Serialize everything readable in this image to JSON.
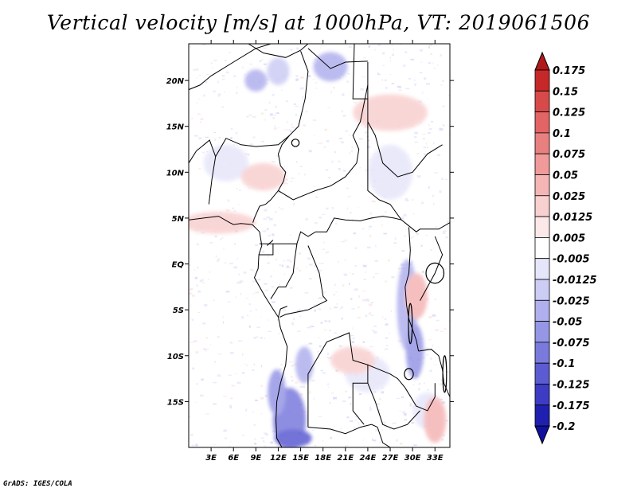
{
  "title": "Vertical velocity [m/s] at 1000hPa, VT: 2019061506",
  "credit": "GrADS: IGES/COLA",
  "chart_data": {
    "type": "heatmap",
    "title": "Vertical velocity [m/s] at 1000hPa, VT: 2019061506",
    "variable": "Vertical velocity",
    "units": "m/s",
    "level": "1000hPa",
    "valid_time": "2019061506",
    "xlim": [
      0,
      35
    ],
    "ylim": [
      -20,
      24
    ],
    "x_ticks": [
      {
        "value": 3,
        "label": "3E"
      },
      {
        "value": 6,
        "label": "6E"
      },
      {
        "value": 9,
        "label": "9E"
      },
      {
        "value": 12,
        "label": "12E"
      },
      {
        "value": 15,
        "label": "15E"
      },
      {
        "value": 18,
        "label": "18E"
      },
      {
        "value": 21,
        "label": "21E"
      },
      {
        "value": 24,
        "label": "24E"
      },
      {
        "value": 27,
        "label": "27E"
      },
      {
        "value": 30,
        "label": "30E"
      },
      {
        "value": 33,
        "label": "33E"
      }
    ],
    "y_ticks": [
      {
        "value": 20,
        "label": "20N"
      },
      {
        "value": 15,
        "label": "15N"
      },
      {
        "value": 10,
        "label": "10N"
      },
      {
        "value": 5,
        "label": "5N"
      },
      {
        "value": 0,
        "label": "EQ"
      },
      {
        "value": -5,
        "label": "5S"
      },
      {
        "value": -10,
        "label": "10S"
      },
      {
        "value": -15,
        "label": "15S"
      }
    ],
    "colorbar": {
      "levels": [
        "0.175",
        "0.15",
        "0.125",
        "0.1",
        "0.075",
        "0.05",
        "0.025",
        "0.0125",
        "0.005",
        "-0.005",
        "-0.0125",
        "-0.025",
        "-0.05",
        "-0.075",
        "-0.1",
        "-0.125",
        "-0.175",
        "-0.2"
      ],
      "colors": [
        "#b01a1a",
        "#c62828",
        "#d84a4a",
        "#e26464",
        "#e98080",
        "#f09a9a",
        "#f5b5b5",
        "#f9d0d0",
        "#fce8e8",
        "#ffffff",
        "#e6e6fa",
        "#ccccf4",
        "#b0b0ee",
        "#9696e6",
        "#7a7add",
        "#5c5cd2",
        "#3c3cc4",
        "#2020b0",
        "#10109e"
      ]
    },
    "features": {
      "negative_regions": [
        {
          "lon": 13.5,
          "lat": -17,
          "rx": 2.2,
          "ry": 3.5,
          "value": -0.1
        },
        {
          "lon": 11.8,
          "lat": -14,
          "rx": 1.2,
          "ry": 2.5,
          "value": -0.075
        },
        {
          "lon": 15.5,
          "lat": -11,
          "rx": 1.2,
          "ry": 2,
          "value": -0.05
        },
        {
          "lon": 29.3,
          "lat": -4.5,
          "rx": 1.4,
          "ry": 5,
          "value": -0.05
        },
        {
          "lon": 30.3,
          "lat": -9.5,
          "rx": 1.2,
          "ry": 3,
          "value": -0.075
        },
        {
          "lon": 19,
          "lat": 21.5,
          "rx": 2.3,
          "ry": 1.6,
          "value": -0.05
        },
        {
          "lon": 9,
          "lat": 20,
          "rx": 1.5,
          "ry": 1.2,
          "value": -0.05
        },
        {
          "lon": 32,
          "lat": -16,
          "rx": 2,
          "ry": 2,
          "value": -0.0125
        },
        {
          "lon": 14,
          "lat": -19,
          "rx": 2.5,
          "ry": 1,
          "value": -0.125
        },
        {
          "lon": 12,
          "lat": 21,
          "rx": 1.5,
          "ry": 1.5,
          "value": -0.025
        },
        {
          "lon": 24,
          "lat": -12,
          "rx": 3,
          "ry": 2,
          "value": -0.0125
        },
        {
          "lon": 5,
          "lat": 11,
          "rx": 3,
          "ry": 2,
          "value": -0.0125
        },
        {
          "lon": 27,
          "lat": 10,
          "rx": 3,
          "ry": 3,
          "value": -0.0125
        }
      ],
      "positive_regions": [
        {
          "lon": 4,
          "lat": 4.5,
          "rx": 5,
          "ry": 1.2,
          "value": 0.0125
        },
        {
          "lon": 27,
          "lat": 16.5,
          "rx": 5,
          "ry": 2,
          "value": 0.0125
        },
        {
          "lon": 10,
          "lat": 9.5,
          "rx": 3,
          "ry": 1.5,
          "value": 0.0125
        },
        {
          "lon": 33,
          "lat": -17,
          "rx": 1.5,
          "ry": 2.5,
          "value": 0.025
        },
        {
          "lon": 30.5,
          "lat": -3.5,
          "rx": 1.5,
          "ry": 2.5,
          "value": 0.025
        },
        {
          "lon": 22,
          "lat": -10.5,
          "rx": 3,
          "ry": 1.5,
          "value": 0.0125
        }
      ]
    }
  }
}
